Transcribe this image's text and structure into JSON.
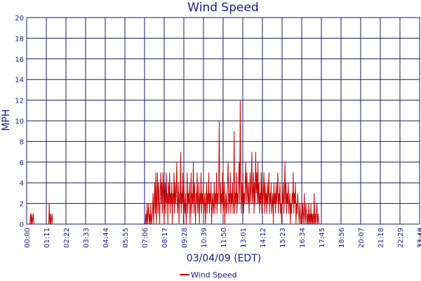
{
  "chart_data": {
    "type": "line",
    "title": "Wind Speed",
    "xlabel": "03/04/09 (EDT)",
    "ylabel": "MPH",
    "ylim": [
      0,
      20
    ],
    "y_ticks": [
      "0",
      "2",
      "4",
      "6",
      "8",
      "10",
      "12",
      "14",
      "16",
      "18",
      "20"
    ],
    "x_ticks": [
      "00:00",
      "01:11",
      "02:22",
      "03:33",
      "04:44",
      "05:55",
      "07:06",
      "08:17",
      "09:28",
      "10:39",
      "11:50",
      "13:01",
      "14:12",
      "15:23",
      "16:34",
      "17:45",
      "18:56",
      "20:07",
      "21:18",
      "22:29",
      "23:40",
      "23:44"
    ],
    "legend_position": "bottom-center",
    "grid": true,
    "colors": {
      "series": "#cc0000",
      "grid": "#1a1a6e",
      "text": "#1a1a8c"
    },
    "series": [
      {
        "name": "Wind Speed",
        "x_unit": "minutes since 00:00",
        "points": [
          [
            0,
            0
          ],
          [
            12,
            0
          ],
          [
            14,
            1
          ],
          [
            16,
            0
          ],
          [
            18,
            1
          ],
          [
            20,
            0
          ],
          [
            24,
            1
          ],
          [
            26,
            0
          ],
          [
            60,
            0
          ],
          [
            80,
            0
          ],
          [
            82,
            2
          ],
          [
            84,
            0
          ],
          [
            86,
            1
          ],
          [
            88,
            0
          ],
          [
            92,
            1
          ],
          [
            94,
            0
          ],
          [
            430,
            0
          ],
          [
            432,
            1
          ],
          [
            434,
            0
          ],
          [
            436,
            2
          ],
          [
            438,
            0
          ],
          [
            440,
            1
          ],
          [
            442,
            2
          ],
          [
            444,
            0
          ],
          [
            446,
            1
          ],
          [
            448,
            0
          ],
          [
            450,
            2
          ],
          [
            452,
            0
          ],
          [
            456,
            1
          ],
          [
            458,
            3
          ],
          [
            460,
            0
          ],
          [
            462,
            2
          ],
          [
            464,
            4
          ],
          [
            466,
            1
          ],
          [
            468,
            5
          ],
          [
            470,
            0
          ],
          [
            472,
            3
          ],
          [
            474,
            5
          ],
          [
            476,
            1
          ],
          [
            478,
            4
          ],
          [
            480,
            2
          ],
          [
            482,
            0
          ],
          [
            484,
            3
          ],
          [
            486,
            5
          ],
          [
            488,
            2
          ],
          [
            490,
            4
          ],
          [
            492,
            1
          ],
          [
            494,
            5
          ],
          [
            496,
            3
          ],
          [
            498,
            0
          ],
          [
            500,
            2
          ],
          [
            502,
            4
          ],
          [
            504,
            1
          ],
          [
            506,
            5
          ],
          [
            508,
            2
          ],
          [
            510,
            3
          ],
          [
            512,
            0
          ],
          [
            514,
            4
          ],
          [
            516,
            2
          ],
          [
            518,
            5
          ],
          [
            520,
            1
          ],
          [
            522,
            3
          ],
          [
            524,
            2
          ],
          [
            526,
            4
          ],
          [
            528,
            0
          ],
          [
            530,
            3
          ],
          [
            532,
            2
          ],
          [
            534,
            5
          ],
          [
            536,
            1
          ],
          [
            538,
            4
          ],
          [
            540,
            2
          ],
          [
            542,
            3
          ],
          [
            544,
            6
          ],
          [
            546,
            1
          ],
          [
            548,
            2
          ],
          [
            550,
            4
          ],
          [
            552,
            0
          ],
          [
            554,
            3
          ],
          [
            556,
            2
          ],
          [
            558,
            7
          ],
          [
            560,
            1
          ],
          [
            562,
            3
          ],
          [
            564,
            2
          ],
          [
            566,
            5
          ],
          [
            568,
            0
          ],
          [
            570,
            4
          ],
          [
            572,
            2
          ],
          [
            574,
            1
          ],
          [
            576,
            3
          ],
          [
            578,
            0
          ],
          [
            580,
            2
          ],
          [
            582,
            5
          ],
          [
            584,
            1
          ],
          [
            586,
            3
          ],
          [
            588,
            2
          ],
          [
            590,
            4
          ],
          [
            592,
            0
          ],
          [
            594,
            2
          ],
          [
            596,
            5
          ],
          [
            598,
            1
          ],
          [
            600,
            3
          ],
          [
            602,
            2
          ],
          [
            604,
            6
          ],
          [
            606,
            1
          ],
          [
            608,
            4
          ],
          [
            610,
            2
          ],
          [
            612,
            0
          ],
          [
            614,
            3
          ],
          [
            616,
            2
          ],
          [
            618,
            5
          ],
          [
            620,
            1
          ],
          [
            622,
            2
          ],
          [
            624,
            4
          ],
          [
            626,
            0
          ],
          [
            628,
            3
          ],
          [
            630,
            2
          ],
          [
            632,
            5
          ],
          [
            634,
            1
          ],
          [
            636,
            3
          ],
          [
            638,
            2
          ],
          [
            640,
            4
          ],
          [
            642,
            1
          ],
          [
            644,
            2
          ],
          [
            646,
            3
          ],
          [
            648,
            0
          ],
          [
            650,
            2
          ],
          [
            652,
            4
          ],
          [
            654,
            1
          ],
          [
            656,
            3
          ],
          [
            658,
            2
          ],
          [
            660,
            5
          ],
          [
            662,
            1
          ],
          [
            664,
            3
          ],
          [
            666,
            2
          ],
          [
            668,
            4
          ],
          [
            670,
            0
          ],
          [
            672,
            2
          ],
          [
            674,
            3
          ],
          [
            676,
            1
          ],
          [
            678,
            2
          ],
          [
            680,
            4
          ],
          [
            682,
            1
          ],
          [
            684,
            3
          ],
          [
            686,
            2
          ],
          [
            688,
            5
          ],
          [
            690,
            1
          ],
          [
            692,
            3
          ],
          [
            694,
            2
          ],
          [
            696,
            4
          ],
          [
            698,
            10
          ],
          [
            700,
            2
          ],
          [
            702,
            4
          ],
          [
            704,
            1
          ],
          [
            706,
            3
          ],
          [
            708,
            2
          ],
          [
            710,
            5
          ],
          [
            712,
            1
          ],
          [
            714,
            2
          ],
          [
            716,
            4
          ],
          [
            718,
            0
          ],
          [
            720,
            2
          ],
          [
            722,
            3
          ],
          [
            724,
            1
          ],
          [
            726,
            2
          ],
          [
            728,
            4
          ],
          [
            730,
            6
          ],
          [
            732,
            1
          ],
          [
            734,
            3
          ],
          [
            736,
            2
          ],
          [
            738,
            5
          ],
          [
            740,
            1
          ],
          [
            742,
            3
          ],
          [
            744,
            2
          ],
          [
            746,
            4
          ],
          [
            748,
            1
          ],
          [
            750,
            2
          ],
          [
            752,
            9
          ],
          [
            754,
            1
          ],
          [
            756,
            3
          ],
          [
            758,
            2
          ],
          [
            760,
            5
          ],
          [
            762,
            1
          ],
          [
            764,
            3
          ],
          [
            766,
            2
          ],
          [
            768,
            4
          ],
          [
            770,
            6
          ],
          [
            772,
            2
          ],
          [
            774,
            12
          ],
          [
            776,
            3
          ],
          [
            778,
            1
          ],
          [
            780,
            4
          ],
          [
            782,
            2
          ],
          [
            784,
            5
          ],
          [
            786,
            1
          ],
          [
            788,
            3
          ],
          [
            790,
            2
          ],
          [
            792,
            4
          ],
          [
            794,
            6
          ],
          [
            796,
            2
          ],
          [
            798,
            5
          ],
          [
            800,
            3
          ],
          [
            802,
            2
          ],
          [
            804,
            4
          ],
          [
            806,
            1
          ],
          [
            808,
            3
          ],
          [
            810,
            5
          ],
          [
            812,
            2
          ],
          [
            814,
            4
          ],
          [
            816,
            7
          ],
          [
            818,
            2
          ],
          [
            820,
            3
          ],
          [
            822,
            5
          ],
          [
            824,
            1
          ],
          [
            826,
            4
          ],
          [
            828,
            2
          ],
          [
            830,
            7
          ],
          [
            832,
            3
          ],
          [
            834,
            5
          ],
          [
            836,
            2
          ],
          [
            838,
            6
          ],
          [
            840,
            2
          ],
          [
            842,
            4
          ],
          [
            844,
            1
          ],
          [
            846,
            3
          ],
          [
            848,
            2
          ],
          [
            850,
            5
          ],
          [
            852,
            1
          ],
          [
            854,
            4
          ],
          [
            856,
            2
          ],
          [
            858,
            3
          ],
          [
            860,
            5
          ],
          [
            862,
            1
          ],
          [
            864,
            4
          ],
          [
            866,
            2
          ],
          [
            868,
            3
          ],
          [
            870,
            1
          ],
          [
            872,
            4
          ],
          [
            874,
            2
          ],
          [
            876,
            3
          ],
          [
            878,
            5
          ],
          [
            880,
            1
          ],
          [
            882,
            3
          ],
          [
            884,
            2
          ],
          [
            886,
            4
          ],
          [
            888,
            1
          ],
          [
            890,
            2
          ],
          [
            892,
            3
          ],
          [
            894,
            0
          ],
          [
            896,
            4
          ],
          [
            898,
            2
          ],
          [
            900,
            3
          ],
          [
            902,
            1
          ],
          [
            904,
            4
          ],
          [
            906,
            2
          ],
          [
            908,
            3
          ],
          [
            910,
            5
          ],
          [
            912,
            1
          ],
          [
            914,
            3
          ],
          [
            916,
            2
          ],
          [
            918,
            4
          ],
          [
            920,
            1
          ],
          [
            922,
            2
          ],
          [
            924,
            0
          ],
          [
            926,
            3
          ],
          [
            928,
            2
          ],
          [
            930,
            4
          ],
          [
            932,
            1
          ],
          [
            934,
            3
          ],
          [
            936,
            6
          ],
          [
            938,
            2
          ],
          [
            940,
            4
          ],
          [
            942,
            1
          ],
          [
            944,
            3
          ],
          [
            946,
            2
          ],
          [
            948,
            4
          ],
          [
            950,
            1
          ],
          [
            952,
            2
          ],
          [
            954,
            3
          ],
          [
            956,
            0
          ],
          [
            958,
            2
          ],
          [
            960,
            1
          ],
          [
            962,
            3
          ],
          [
            964,
            2
          ],
          [
            966,
            5
          ],
          [
            968,
            1
          ],
          [
            970,
            3
          ],
          [
            972,
            2
          ],
          [
            974,
            4
          ],
          [
            976,
            0
          ],
          [
            978,
            2
          ],
          [
            980,
            1
          ],
          [
            982,
            3
          ],
          [
            984,
            2
          ],
          [
            986,
            1
          ],
          [
            988,
            0
          ],
          [
            990,
            2
          ],
          [
            992,
            1
          ],
          [
            994,
            0
          ],
          [
            996,
            1
          ],
          [
            998,
            0
          ],
          [
            1000,
            2
          ],
          [
            1002,
            1
          ],
          [
            1004,
            0
          ],
          [
            1006,
            3
          ],
          [
            1008,
            1
          ],
          [
            1010,
            0
          ],
          [
            1012,
            2
          ],
          [
            1014,
            1
          ],
          [
            1016,
            0
          ],
          [
            1018,
            1
          ],
          [
            1020,
            0
          ],
          [
            1022,
            2
          ],
          [
            1024,
            0
          ],
          [
            1026,
            1
          ],
          [
            1028,
            0
          ],
          [
            1030,
            2
          ],
          [
            1032,
            0
          ],
          [
            1034,
            1
          ],
          [
            1036,
            0
          ],
          [
            1038,
            1
          ],
          [
            1040,
            0
          ],
          [
            1042,
            3
          ],
          [
            1044,
            0
          ],
          [
            1046,
            1
          ],
          [
            1048,
            0
          ],
          [
            1050,
            1
          ],
          [
            1052,
            2
          ],
          [
            1054,
            0
          ],
          [
            1056,
            1
          ],
          [
            1058,
            0
          ],
          [
            1060,
            0
          ],
          [
            1080,
            0
          ],
          [
            1200,
            0
          ],
          [
            1320,
            0
          ],
          [
            1424,
            0
          ]
        ]
      }
    ]
  }
}
